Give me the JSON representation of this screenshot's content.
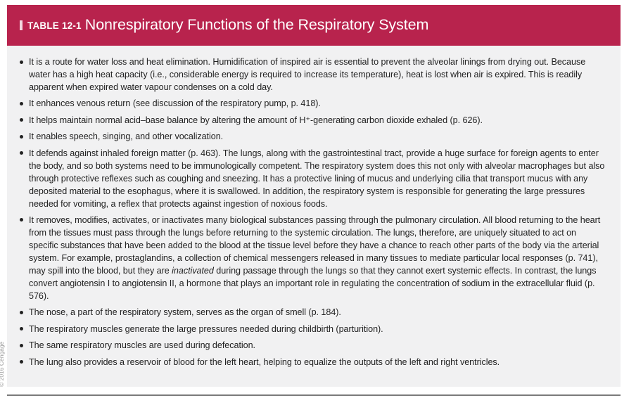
{
  "table": {
    "label": "TABLE 12-1",
    "title": "Nonrespiratory Functions of the Respiratory System"
  },
  "items": [
    "It is a route for water loss and heat elimination. Humidification of inspired air is essential to prevent the alveolar linings from drying out. Because water has a high heat capacity (i.e., considerable energy is required to increase its temperature), heat is lost when air is expired. This is readily apparent when expired water vapour condenses on a cold day.",
    "It enhances venous return (see discussion of the respiratory pump, p. 418).",
    "It helps maintain normal acid–base balance by altering the amount of H⁺-generating carbon dioxide exhaled (p. 626).",
    "It enables speech, singing, and other vocalization.",
    "It defends against inhaled foreign matter (p. 463). The lungs, along with the gastrointestinal tract, provide a huge surface for foreign agents to enter the body, and so both systems need to be immunologically competent. The respiratory system does this not only with alveolar macrophages but also through protective reflexes such as coughing and sneezing. It has a protective lining of mucus and underlying cilia that transport mucus with any deposited material to the esophagus, where it is swallowed. In addition, the respiratory system is responsible for generating the large pressures needed for vomiting, a reflex that protects against ingestion of noxious foods.",
    "It removes, modifies, activates, or inactivates many biological substances passing through the pulmonary circulation. All blood returning to the heart from the tissues must pass through the lungs before returning to the systemic circulation. The lungs, therefore, are uniquely situated to act on specific substances that have been added to the blood at the tissue level before they have a chance to reach other parts of the body via the arterial system. For example, prostaglandins, a collection of chemical messengers released in many tissues to mediate particular local responses (p. 741), may spill into the blood, but they are inactivated during passage through the lungs so that they cannot exert systemic effects. In contrast, the lungs convert angiotensin I to angiotensin II, a hormone that plays an important role in regulating the concentration of sodium in the extracellular fluid (p. 576).",
    "The nose, a part of the respiratory system, serves as the organ of smell (p. 184).",
    "The respiratory muscles generate the large pressures needed during childbirth (parturition).",
    "The same respiratory muscles are used during defecation.",
    "The lung also provides a reservoir of blood for the left heart, helping to equalize the outputs of the left and right ventricles."
  ],
  "credit": "© 2016 Cengage",
  "colors": {
    "banner": "#b8234d",
    "panel": "#f1f1f2",
    "text": "#222222"
  }
}
